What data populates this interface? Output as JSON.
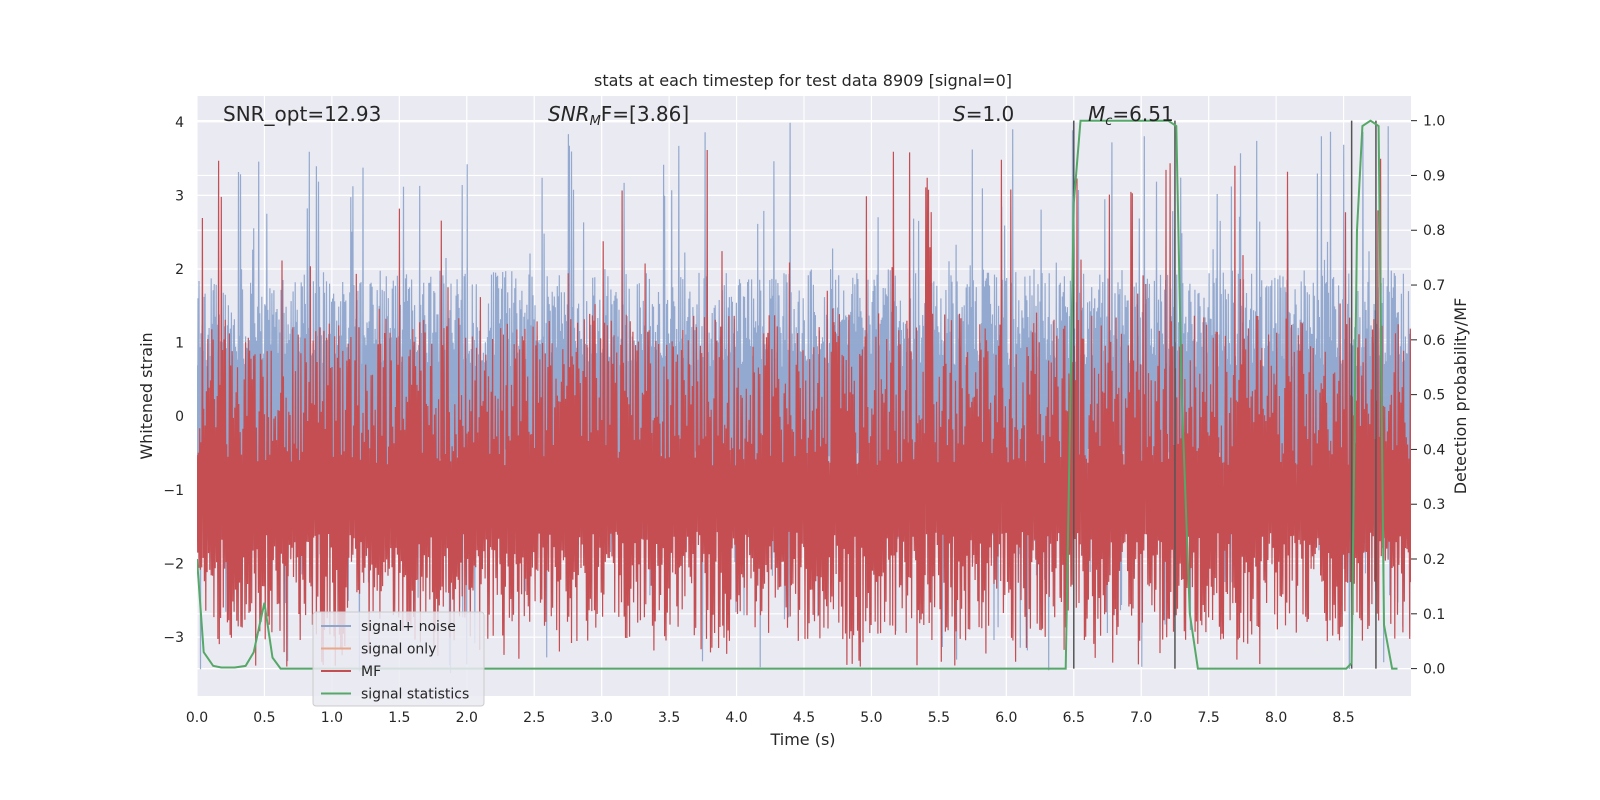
{
  "chart_data": {
    "type": "line",
    "title": "stats at each timestep for test data 8909 [signal=0]",
    "xlabel": "Time (s)",
    "ylabel": "Whitened strain",
    "ylabel_right": "Detection probability/MF",
    "xlim": [
      0,
      9
    ],
    "ylim": [
      -3.8,
      4.35
    ],
    "ylim_right": [
      -0.05,
      1.045
    ],
    "x_ticks": [
      "0.0",
      "0.5",
      "1.0",
      "1.5",
      "2.0",
      "2.5",
      "3.0",
      "3.5",
      "4.0",
      "4.5",
      "5.0",
      "5.5",
      "6.0",
      "6.5",
      "7.0",
      "7.5",
      "8.0",
      "8.5"
    ],
    "y_ticks": [
      "−3",
      "−2",
      "−1",
      "0",
      "1",
      "2",
      "3",
      "4"
    ],
    "y_right_ticks": [
      "0.0",
      "0.1",
      "0.2",
      "0.3",
      "0.4",
      "0.5",
      "0.6",
      "0.7",
      "0.8",
      "0.9",
      "1.0"
    ],
    "grid": true,
    "legend_position": "lower-left",
    "annotations": {
      "snr_opt": "SNR_opt=12.93",
      "snr_mf_main": "SNR",
      "snr_mf_sub": "M",
      "snr_mf_rest": "F=[3.86]",
      "s_main": "S",
      "s_rest": "=1.0",
      "mc_main": "M",
      "mc_sub": "c",
      "mc_rest": "=6.51"
    },
    "series": [
      {
        "name": "signal+ noise",
        "color": "#8fa5cc",
        "envelope": {
          "mean": 0.1,
          "upper_typical": 2.0,
          "upper_max": 4.0,
          "lower_typical": -1.7,
          "lower_min": -3.5
        }
      },
      {
        "name": "signal only",
        "color": "#e8a889",
        "x": [],
        "y": []
      },
      {
        "name": "MF",
        "color": "#c44e52",
        "envelope": {
          "mean": 0.3,
          "upper_typical": 0.65,
          "upper_max": 0.95,
          "lower_typical": 0.05,
          "lower_min": 0.0
        }
      },
      {
        "name": "signal statistics",
        "color": "#55a868",
        "axis": "right",
        "x": [
          0.0,
          0.05,
          0.12,
          0.18,
          0.28,
          0.36,
          0.42,
          0.5,
          0.56,
          0.62,
          0.7,
          1.0,
          2.0,
          3.0,
          4.0,
          5.0,
          6.0,
          6.3,
          6.44,
          6.5,
          6.55,
          6.62,
          6.8,
          7.0,
          7.2,
          7.26,
          7.3,
          7.36,
          7.42,
          7.5,
          8.0,
          8.3,
          8.52,
          8.56,
          8.6,
          8.64,
          8.7,
          8.76,
          8.8,
          8.86,
          8.9
        ],
        "y": [
          0.2,
          0.03,
          0.005,
          0.002,
          0.002,
          0.005,
          0.03,
          0.12,
          0.02,
          0.0,
          0.0,
          0.0,
          0.0,
          0.0,
          0.0,
          0.0,
          0.0,
          0.0,
          0.0,
          0.85,
          1.0,
          1.0,
          1.0,
          1.0,
          1.0,
          0.99,
          0.5,
          0.1,
          0.0,
          0.0,
          0.0,
          0.0,
          0.0,
          0.01,
          0.8,
          0.99,
          1.0,
          0.99,
          0.08,
          0.0,
          0.0
        ]
      }
    ],
    "vertical_lines": [
      6.5,
      7.25,
      8.56,
      8.74
    ]
  }
}
